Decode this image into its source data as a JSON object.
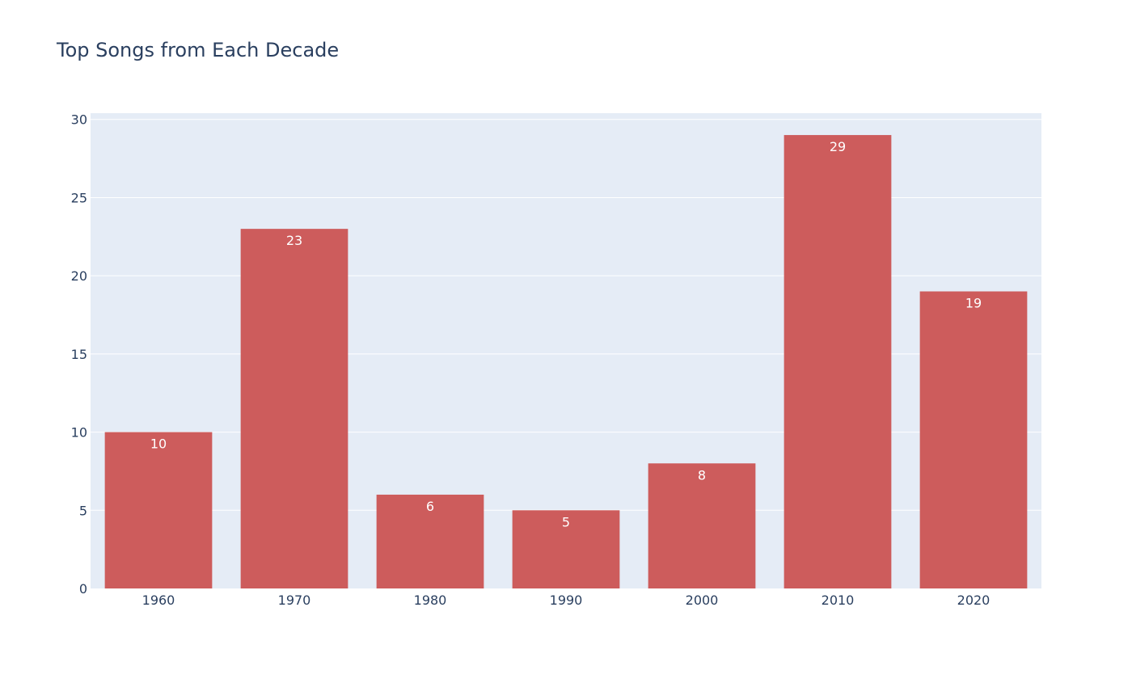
{
  "chart_data": {
    "type": "bar",
    "title": "Top Songs from Each Decade",
    "xlabel": "",
    "ylabel": "",
    "categories": [
      "1960",
      "1970",
      "1980",
      "1990",
      "2000",
      "2010",
      "2020"
    ],
    "values": [
      10,
      23,
      6,
      5,
      8,
      29,
      19
    ],
    "ylim": [
      0,
      30
    ],
    "yticks": [
      0,
      5,
      10,
      15,
      20,
      25,
      30
    ],
    "grid": true,
    "legend": "none",
    "colors": {
      "bar": "#cd5c5c",
      "plot_background": "#e5ecf6",
      "text": "#2a3f5f",
      "grid": "#ffffff",
      "data_label": "#ffffff"
    }
  }
}
